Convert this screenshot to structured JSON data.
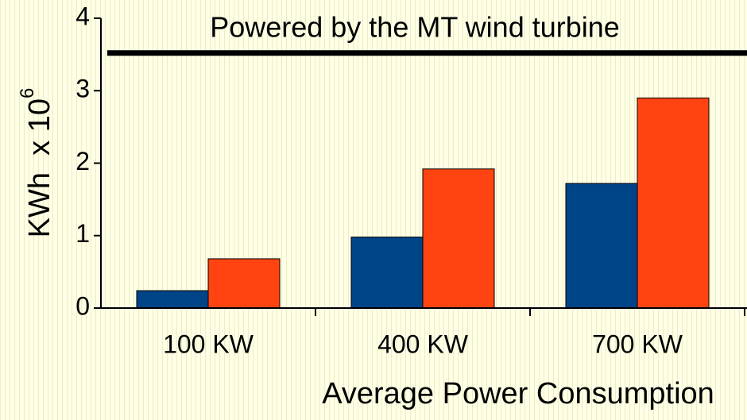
{
  "chart_data": {
    "type": "bar",
    "x_label": "Average Power Consumption",
    "y_label": "KWh  x 10",
    "y_label_exponent": "6",
    "categories": [
      "100 KW",
      "400 KW",
      "700 KW"
    ],
    "series": [
      {
        "color": "#004488",
        "values": [
          0.24,
          0.98,
          1.72
        ]
      },
      {
        "color": "#ff4411",
        "values": [
          0.68,
          1.92,
          2.9
        ]
      }
    ],
    "reference_line": {
      "value": 3.52,
      "label": "Powered by the MT wind turbine"
    },
    "ylim": [
      0,
      4
    ],
    "yticks": [
      0,
      1,
      2,
      3,
      4
    ],
    "grid": false
  }
}
